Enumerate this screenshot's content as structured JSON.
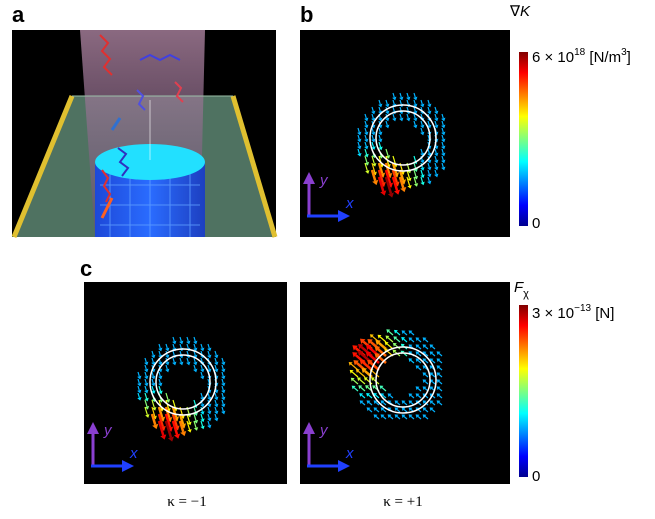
{
  "panels": {
    "a": {
      "label": "a"
    },
    "b": {
      "label": "b",
      "axes": {
        "y": "y",
        "x": "x"
      }
    },
    "c": {
      "label": "c",
      "left": {
        "caption": "κ = −1",
        "axes": {
          "y": "y",
          "x": "x"
        }
      },
      "right": {
        "caption": "κ = +1",
        "axes": {
          "y": "y",
          "x": "x"
        }
      }
    }
  },
  "colorbars": [
    {
      "symbol": "∇",
      "variable": "K",
      "max": {
        "base": "6 × 10",
        "exponent": "18",
        "unit": " [N/m",
        "unit_exponent": "3",
        "unit_end": "]"
      },
      "min": "0"
    },
    {
      "variable": "F",
      "subscript": "χ",
      "max": {
        "base": "3 × 10",
        "exponent": "−13",
        "unit": " [N]"
      },
      "min": "0"
    }
  ]
}
